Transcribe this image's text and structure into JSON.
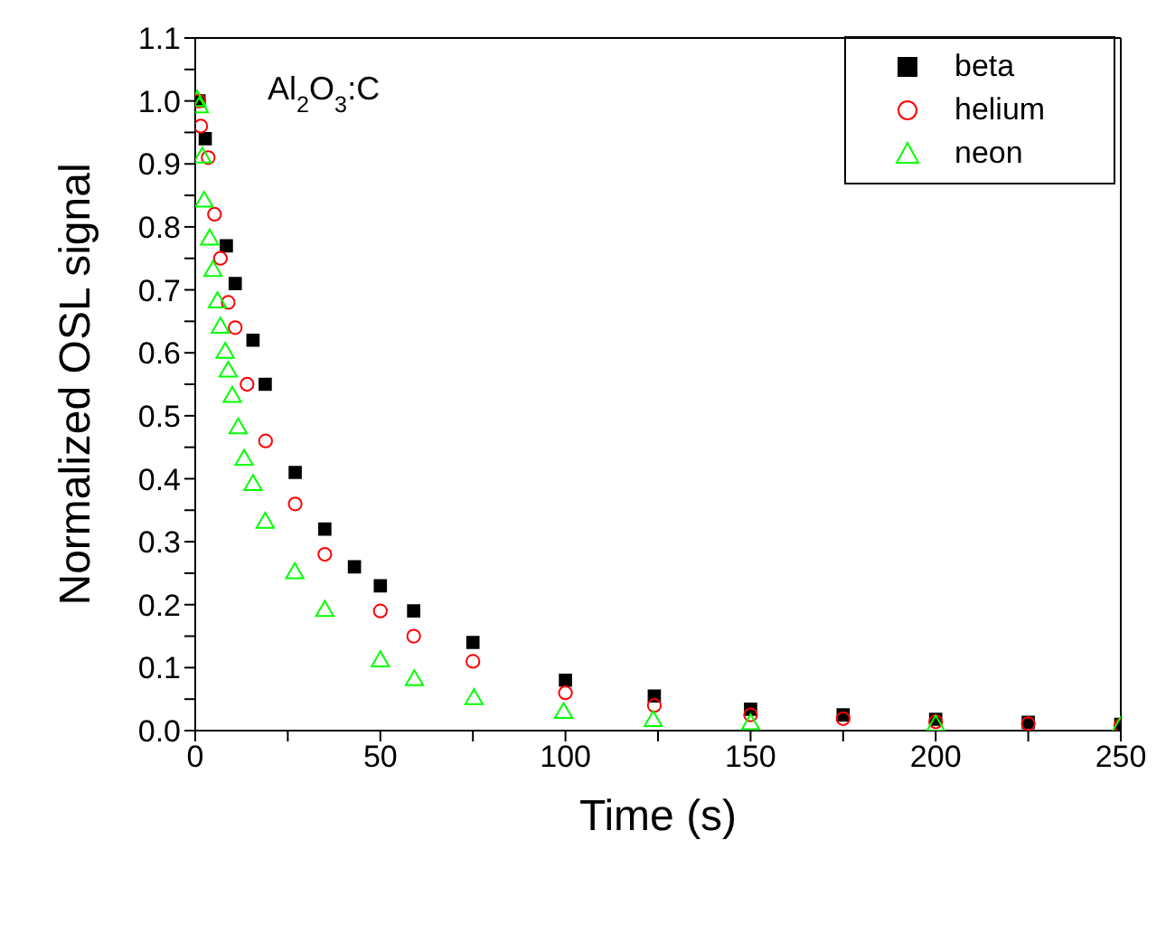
{
  "chart_data": {
    "type": "scatter",
    "xlabel": "Time (s)",
    "ylabel": "Normalized OSL signal",
    "annotations": [
      "Al$_{2}$O$_{3}$:C"
    ],
    "xlim": [
      0,
      250
    ],
    "xticks": [
      0,
      {
        "value": 25,
        "label": null
      },
      50,
      {
        "value": 75,
        "label": null
      },
      100,
      {
        "value": 125,
        "label": null
      },
      150,
      {
        "value": 175,
        "label": null
      },
      200,
      {
        "value": 225,
        "label": null
      },
      250
    ],
    "ylim": [
      0,
      1.1
    ],
    "yticks": [
      {
        "value": 0,
        "label": "0.0"
      },
      {
        "value": 0.05,
        "label": null
      },
      0.1,
      {
        "value": 0.15,
        "label": null
      },
      0.2,
      {
        "value": 0.25,
        "label": null
      },
      0.3,
      {
        "value": 0.35,
        "label": null
      },
      0.4,
      {
        "value": 0.45,
        "label": null
      },
      0.5,
      {
        "value": 0.55,
        "label": null
      },
      0.6,
      {
        "value": 0.65,
        "label": null
      },
      0.7,
      {
        "value": 0.75,
        "label": null
      },
      0.8,
      {
        "value": 0.85,
        "label": null
      },
      0.9,
      {
        "value": 0.95,
        "label": null
      },
      {
        "value": 1,
        "label": "1.0"
      },
      {
        "value": 1.05,
        "label": null
      },
      1.1
    ],
    "grid": false,
    "legend": "top right",
    "series": [
      {
        "name": "beta",
        "color": "#000000",
        "marker": "square",
        "x": [
          1,
          2.7,
          8.4,
          10.8,
          15.6,
          18.9,
          27,
          35,
          43,
          50,
          59,
          75,
          100,
          124,
          150,
          175,
          200,
          225,
          250
        ],
        "values": [
          1.0,
          0.94,
          0.77,
          0.71,
          0.62,
          0.55,
          0.41,
          0.32,
          0.26,
          0.23,
          0.19,
          0.14,
          0.08,
          0.055,
          0.034,
          0.025,
          0.018,
          0.013,
          0.01
        ]
      },
      {
        "name": "helium",
        "color": "#ff0000",
        "marker": "circle",
        "x": [
          1,
          1.5,
          3.5,
          5.2,
          6.8,
          8.9,
          10.8,
          14,
          19,
          27,
          35,
          50,
          59,
          75,
          100,
          124,
          150,
          175,
          200,
          225,
          250
        ],
        "values": [
          1.0,
          0.96,
          0.91,
          0.82,
          0.75,
          0.68,
          0.64,
          0.55,
          0.46,
          0.36,
          0.28,
          0.19,
          0.15,
          0.11,
          0.06,
          0.04,
          0.025,
          0.019,
          0.014,
          0.011,
          0.008
        ]
      },
      {
        "name": "neon",
        "color": "#00ff00",
        "marker": "triangle",
        "x": [
          0.5,
          1.1,
          1.9,
          2.4,
          3.9,
          4.8,
          6,
          6.8,
          8.1,
          8.9,
          10,
          11.6,
          13.2,
          15.6,
          18.9,
          26.9,
          35,
          50,
          59.2,
          75.3,
          99.5,
          123.7,
          150,
          200,
          250
        ],
        "values": [
          1.0,
          0.99,
          0.91,
          0.84,
          0.78,
          0.73,
          0.68,
          0.64,
          0.6,
          0.57,
          0.53,
          0.48,
          0.43,
          0.39,
          0.33,
          0.25,
          0.19,
          0.11,
          0.08,
          0.05,
          0.028,
          0.015,
          0.01,
          0.008,
          0.006
        ]
      }
    ]
  }
}
